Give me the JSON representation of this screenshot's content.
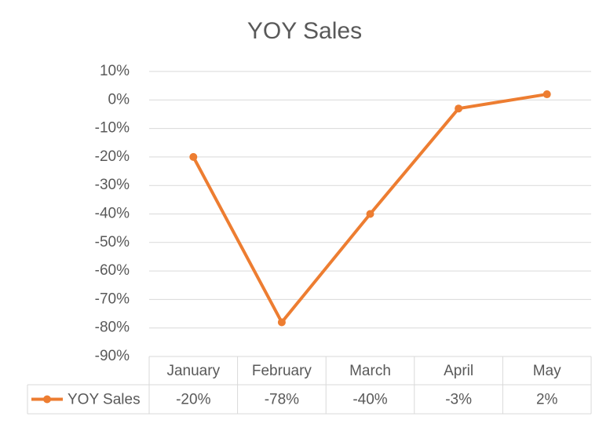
{
  "chart_data": {
    "type": "line",
    "title": "YOY Sales",
    "categories": [
      "January",
      "February",
      "March",
      "April",
      "May"
    ],
    "series": [
      {
        "name": "YOY Sales",
        "color": "#ed7d31",
        "values": [
          -20,
          -78,
          -40,
          -3,
          2
        ],
        "value_labels": [
          "-20%",
          "-78%",
          "-40%",
          "-3%",
          "2%"
        ]
      }
    ],
    "ylim": [
      -90,
      10
    ],
    "yticks": [
      {
        "value": 10,
        "label": "10%"
      },
      {
        "value": 0,
        "label": "0%"
      },
      {
        "value": -10,
        "label": "-10%"
      },
      {
        "value": -20,
        "label": "-20%"
      },
      {
        "value": -30,
        "label": "-30%"
      },
      {
        "value": -40,
        "label": "-40%"
      },
      {
        "value": -50,
        "label": "-50%"
      },
      {
        "value": -60,
        "label": "-60%"
      },
      {
        "value": -70,
        "label": "-70%"
      },
      {
        "value": -80,
        "label": "-80%"
      },
      {
        "value": -90,
        "label": "-90%"
      }
    ],
    "grid": true
  }
}
